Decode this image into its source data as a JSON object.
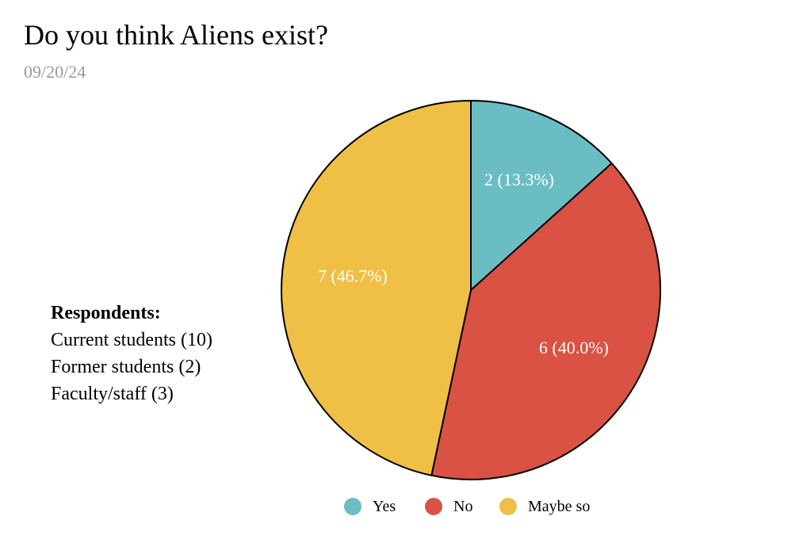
{
  "header": {
    "title": "Do you think Aliens exist?",
    "date": "09/20/24"
  },
  "respondents": {
    "heading": "Respondents:",
    "lines": [
      "Current students (10)",
      "Former students (2)",
      "Faculty/staff (3)"
    ]
  },
  "chart_data": {
    "type": "pie",
    "title": "Do you think Aliens exist?",
    "categories": [
      "Yes",
      "No",
      "Maybe so"
    ],
    "values": [
      2,
      6,
      7
    ],
    "percentages": [
      13.3,
      40.0,
      46.7
    ],
    "labels": [
      "2 (13.3%)",
      "6 (40.0%)",
      "7 (46.7%)"
    ],
    "colors": [
      "#6bbdc4",
      "#d95243",
      "#f0bf45"
    ],
    "start": "12 o'clock, clockwise",
    "legend_position": "bottom"
  }
}
